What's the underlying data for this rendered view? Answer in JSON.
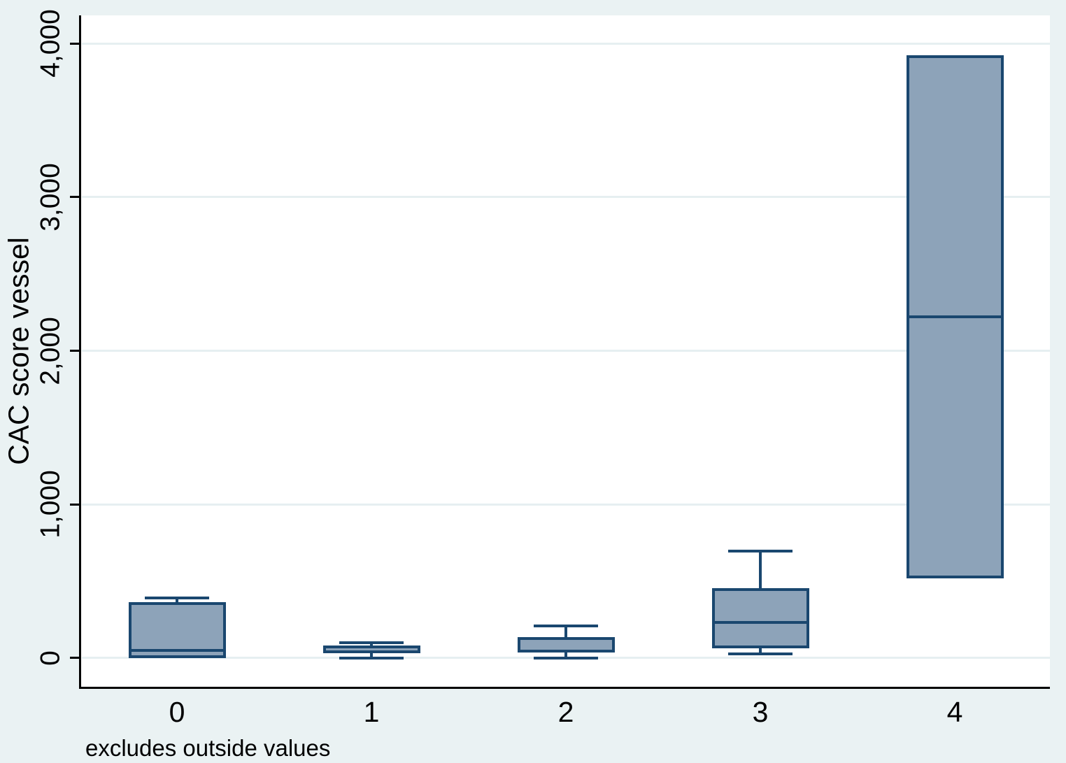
{
  "chart_data": {
    "type": "box",
    "title": "",
    "xlabel": "",
    "ylabel": "CAC score vessel",
    "note": "excludes outside values",
    "categories": [
      "0",
      "1",
      "2",
      "3",
      "4"
    ],
    "yticks": [
      0,
      1000,
      2000,
      3000,
      4000
    ],
    "ytick_labels": [
      "0",
      "1,000",
      "2,000",
      "3,000",
      "4,000"
    ],
    "ylim": [
      -187,
      4183
    ],
    "grid": true,
    "legend": "none",
    "boxes": [
      {
        "category": "0",
        "lower_whisker": null,
        "q1": 0,
        "median": 50,
        "q3": 365,
        "upper_whisker": 390
      },
      {
        "category": "1",
        "lower_whisker": 0,
        "q1": 30,
        "median": 40,
        "q3": 80,
        "upper_whisker": 100
      },
      {
        "category": "2",
        "lower_whisker": 0,
        "q1": 35,
        "median": 45,
        "q3": 135,
        "upper_whisker": 210
      },
      {
        "category": "3",
        "lower_whisker": 25,
        "q1": 65,
        "median": 230,
        "q3": 455,
        "upper_whisker": 695
      },
      {
        "category": "4",
        "lower_whisker": null,
        "q1": 520,
        "median": 2220,
        "q3": 3925,
        "upper_whisker": null
      }
    ],
    "colors": {
      "background": "#EAF2F3",
      "plot_bg": "#FFFFFF",
      "gridline": "#E6EFF1",
      "box_fill": "#8DA3B9",
      "box_outline": "#1A476F",
      "axis": "#000000",
      "text": "#000000"
    }
  }
}
